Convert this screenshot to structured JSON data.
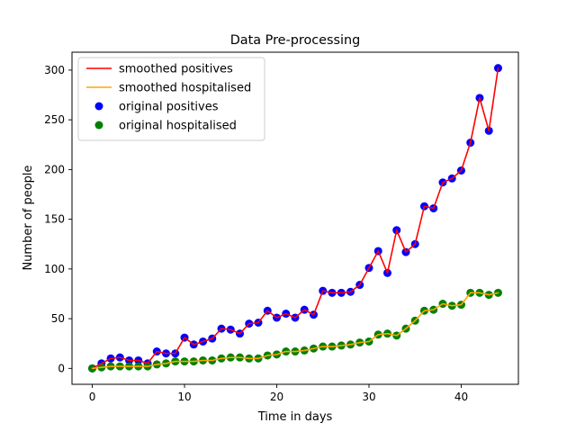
{
  "chart_data": {
    "type": "line",
    "title": "Data Pre-processing",
    "xlabel": "Time in days",
    "ylabel": "Number of people",
    "xlim": [
      -2.2,
      46.2
    ],
    "ylim": [
      -16,
      318
    ],
    "xticks": [
      0,
      10,
      20,
      30,
      40
    ],
    "yticks": [
      0,
      50,
      100,
      150,
      200,
      250,
      300
    ],
    "grid": false,
    "legend_position": "top-left",
    "x": [
      0,
      1,
      2,
      3,
      4,
      5,
      6,
      7,
      8,
      9,
      10,
      11,
      12,
      13,
      14,
      15,
      16,
      17,
      18,
      19,
      20,
      21,
      22,
      23,
      24,
      25,
      26,
      27,
      28,
      29,
      30,
      31,
      32,
      33,
      34,
      35,
      36,
      37,
      38,
      39,
      40,
      41,
      42,
      43,
      44
    ],
    "series": [
      {
        "name": "smoothed positives",
        "kind": "line",
        "color": "#ff0000",
        "values": [
          0,
          5,
          10,
          11,
          8,
          8,
          5,
          17,
          15,
          15,
          31,
          24,
          27,
          30,
          40,
          39,
          35,
          45,
          46,
          58,
          51,
          55,
          51,
          59,
          54,
          78,
          76,
          76,
          77,
          84,
          101,
          118,
          96,
          139,
          117,
          125,
          163,
          161,
          187,
          191,
          199,
          227,
          272,
          239,
          302
        ]
      },
      {
        "name": "smoothed hospitalised",
        "kind": "line",
        "color": "#ffa500",
        "values": [
          0,
          1,
          2,
          2,
          2,
          2,
          2,
          4,
          5,
          7,
          7,
          7,
          8,
          8,
          10,
          11,
          11,
          10,
          10,
          13,
          14,
          17,
          17,
          18,
          20,
          22,
          22,
          23,
          24,
          26,
          27,
          34,
          35,
          33,
          40,
          48,
          58,
          59,
          65,
          63,
          64,
          76,
          76,
          74,
          76
        ]
      },
      {
        "name": "original positives",
        "kind": "scatter",
        "color": "#0000ff",
        "values": [
          0,
          5,
          10,
          11,
          8,
          8,
          5,
          17,
          15,
          15,
          31,
          24,
          27,
          30,
          40,
          39,
          35,
          45,
          46,
          58,
          51,
          55,
          51,
          59,
          54,
          78,
          76,
          76,
          77,
          84,
          101,
          118,
          96,
          139,
          117,
          125,
          163,
          161,
          187,
          191,
          199,
          227,
          272,
          239,
          302
        ]
      },
      {
        "name": "original hospitalised",
        "kind": "scatter",
        "color": "#008000",
        "values": [
          0,
          1,
          2,
          2,
          2,
          2,
          2,
          4,
          5,
          7,
          7,
          7,
          8,
          8,
          10,
          11,
          11,
          10,
          10,
          13,
          14,
          17,
          17,
          18,
          20,
          22,
          22,
          23,
          24,
          26,
          27,
          34,
          35,
          33,
          40,
          48,
          58,
          59,
          65,
          63,
          64,
          76,
          76,
          74,
          76
        ]
      }
    ]
  }
}
